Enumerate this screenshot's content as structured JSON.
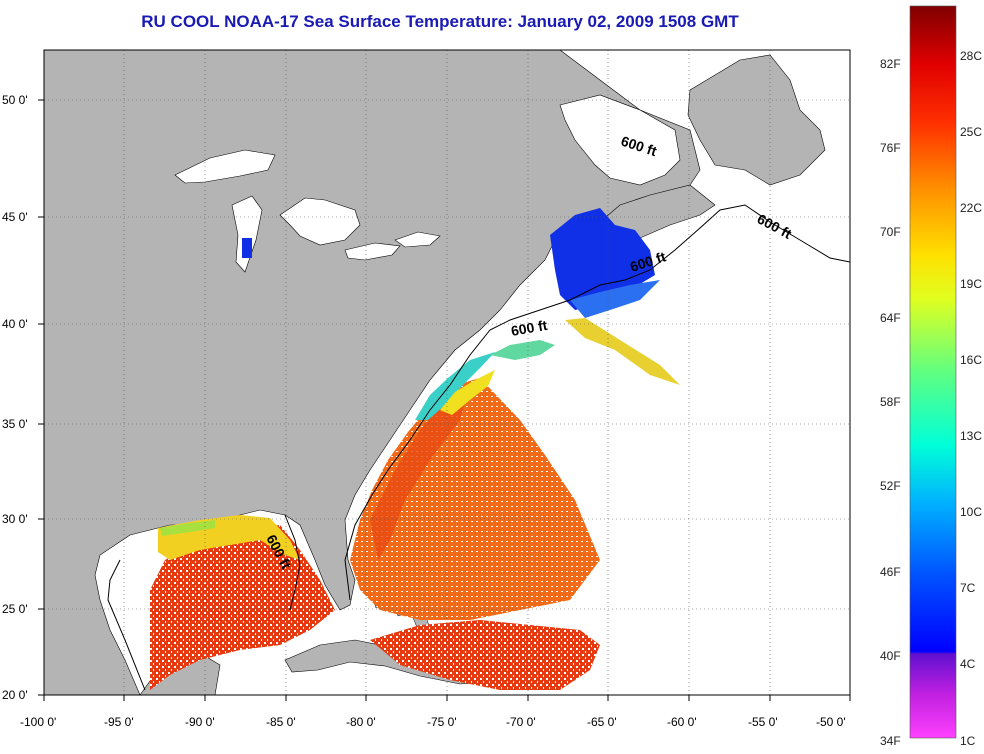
{
  "title": "RU COOL  NOAA-17  Sea Surface Temperature:  January 02, 2009 1508 GMT",
  "map": {
    "lon_labels": [
      "-100 0'",
      "-95 0'",
      "-90 0'",
      "-85 0'",
      "-80 0'",
      "-75 0'",
      "-70 0'",
      "-65 0'",
      "-60 0'",
      "-55 0'",
      "-50 0'"
    ],
    "lat_labels": [
      "50 0'",
      "45 0'",
      "40 0'",
      "35 0'",
      "30 0'",
      "25 0'",
      "20 0'"
    ],
    "contour_labels": [
      "600 ft",
      "600 ft",
      "600 ft",
      "600 ft",
      "600 ft"
    ],
    "colors": {
      "land": "#b4b4b4",
      "ocean_no_data": "#ffffff",
      "grid": "#555555"
    }
  },
  "colorbar": {
    "fahrenheit_labels": [
      "82F",
      "76F",
      "70F",
      "64F",
      "58F",
      "52F",
      "46F",
      "40F",
      "34F"
    ],
    "celsius_labels": [
      "28C",
      "25C",
      "22C",
      "19C",
      "16C",
      "13C",
      "10C",
      "7C",
      "4C",
      "1C"
    ],
    "gradient_stops": [
      "#ff40ff",
      "#8020d0",
      "#0000ff",
      "#0060ff",
      "#00d0ff",
      "#00ffc0",
      "#80ff40",
      "#ffff00",
      "#ffa000",
      "#ff3000",
      "#c00000",
      "#800000"
    ]
  }
}
